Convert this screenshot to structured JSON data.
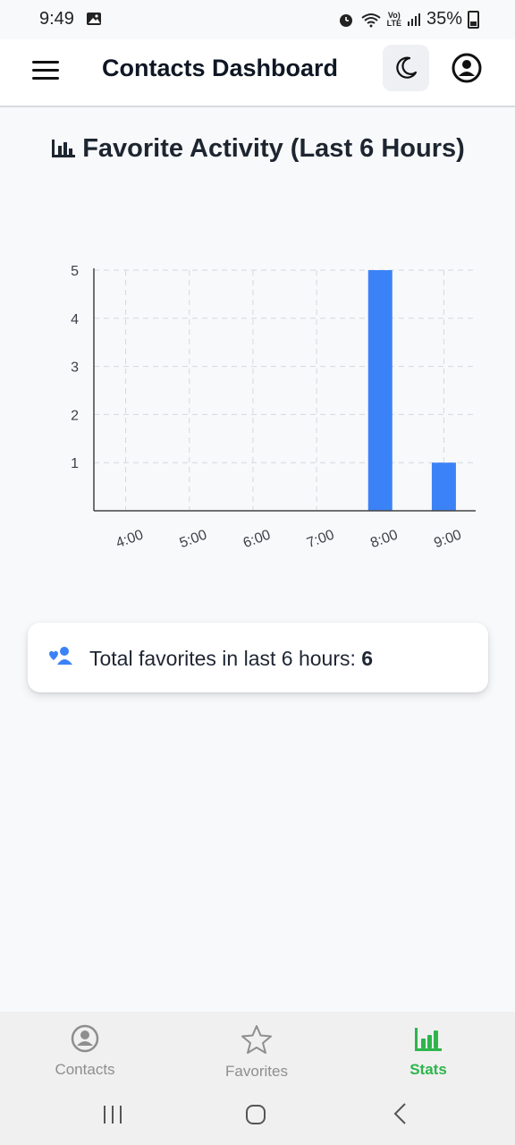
{
  "status_bar": {
    "time": "9:49",
    "network": "LTE",
    "battery": "35%"
  },
  "header": {
    "title": "Contacts Dashboard"
  },
  "page": {
    "heading": "Favorite Activity (Last 6 Hours)"
  },
  "chart_data": {
    "type": "bar",
    "categories": [
      "4:00",
      "5:00",
      "6:00",
      "7:00",
      "8:00",
      "9:00"
    ],
    "values": [
      0,
      0,
      0,
      0,
      5,
      1
    ],
    "ylim": [
      0,
      5
    ],
    "yticks": [
      1,
      2,
      3,
      4,
      5
    ],
    "grid": true,
    "bar_color": "#3b82f6"
  },
  "summary": {
    "label": "Total favorites in last 6 hours:",
    "value": "6"
  },
  "bottom_nav": {
    "items": [
      {
        "label": "Contacts",
        "icon": "person-circle-icon",
        "active": false
      },
      {
        "label": "Favorites",
        "icon": "star-icon",
        "active": false
      },
      {
        "label": "Stats",
        "icon": "bar-chart-icon",
        "active": true
      }
    ],
    "active_color": "#2db54b",
    "inactive_color": "#8e8e8e"
  }
}
